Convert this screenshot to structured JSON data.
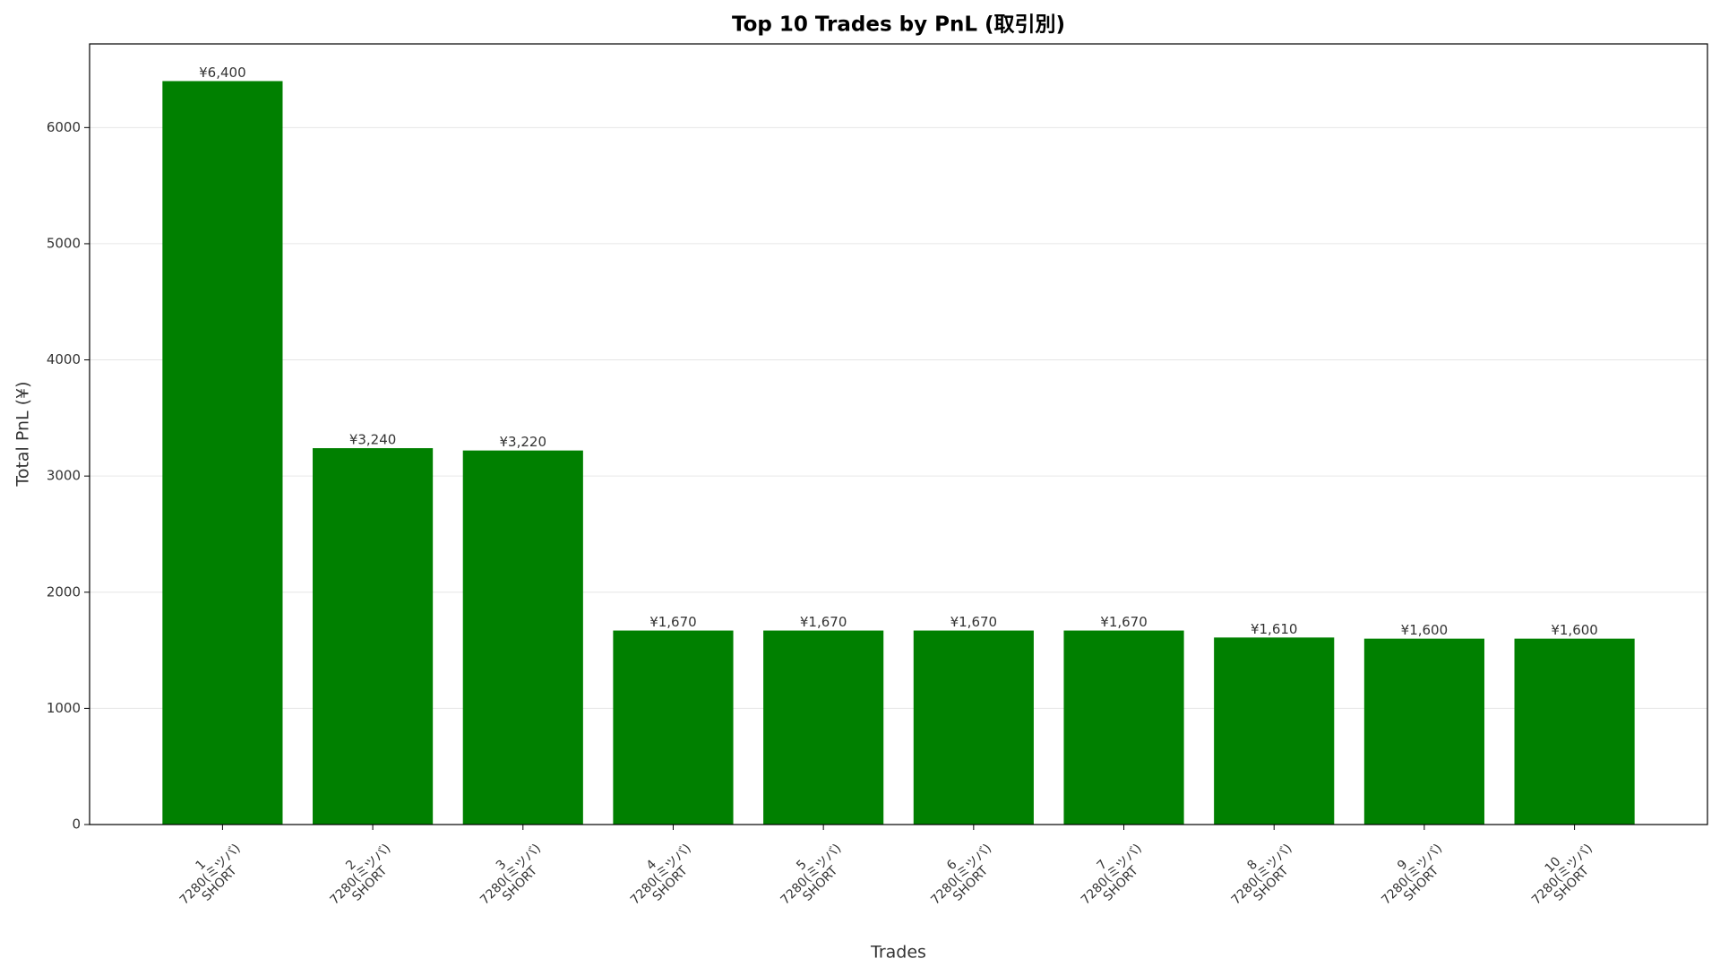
{
  "chart_data": {
    "type": "bar",
    "title": "Top 10 Trades by PnL (取引別)",
    "x_label": "Trades",
    "y_label": "Total PnL (¥)",
    "categories": [
      "1\n7280(ミツバ)\nSHORT",
      "2\n7280(ミツバ)\nSHORT",
      "3\n7280(ミツバ)\nSHORT",
      "4\n7280(ミツバ)\nSHORT",
      "5\n7280(ミツバ)\nSHORT",
      "6\n7280(ミツバ)\nSHORT",
      "7\n7280(ミツバ)\nSHORT",
      "8\n7280(ミツバ)\nSHORT",
      "9\n7280(ミツバ)\nSHORT",
      "10\n7280(ミツバ)\nSHORT"
    ],
    "values": [
      6400,
      3240,
      3220,
      1670,
      1670,
      1670,
      1670,
      1610,
      1600,
      1600
    ],
    "value_labels": [
      "¥6,400",
      "¥3,240",
      "¥3,220",
      "¥1,670",
      "¥1,670",
      "¥1,670",
      "¥1,670",
      "¥1,610",
      "¥1,600",
      "¥1,600"
    ],
    "color": "#008000",
    "ylim": [
      0,
      6720
    ],
    "yticks": [
      0,
      1000,
      2000,
      3000,
      4000,
      5000,
      6000
    ],
    "grid": true
  }
}
